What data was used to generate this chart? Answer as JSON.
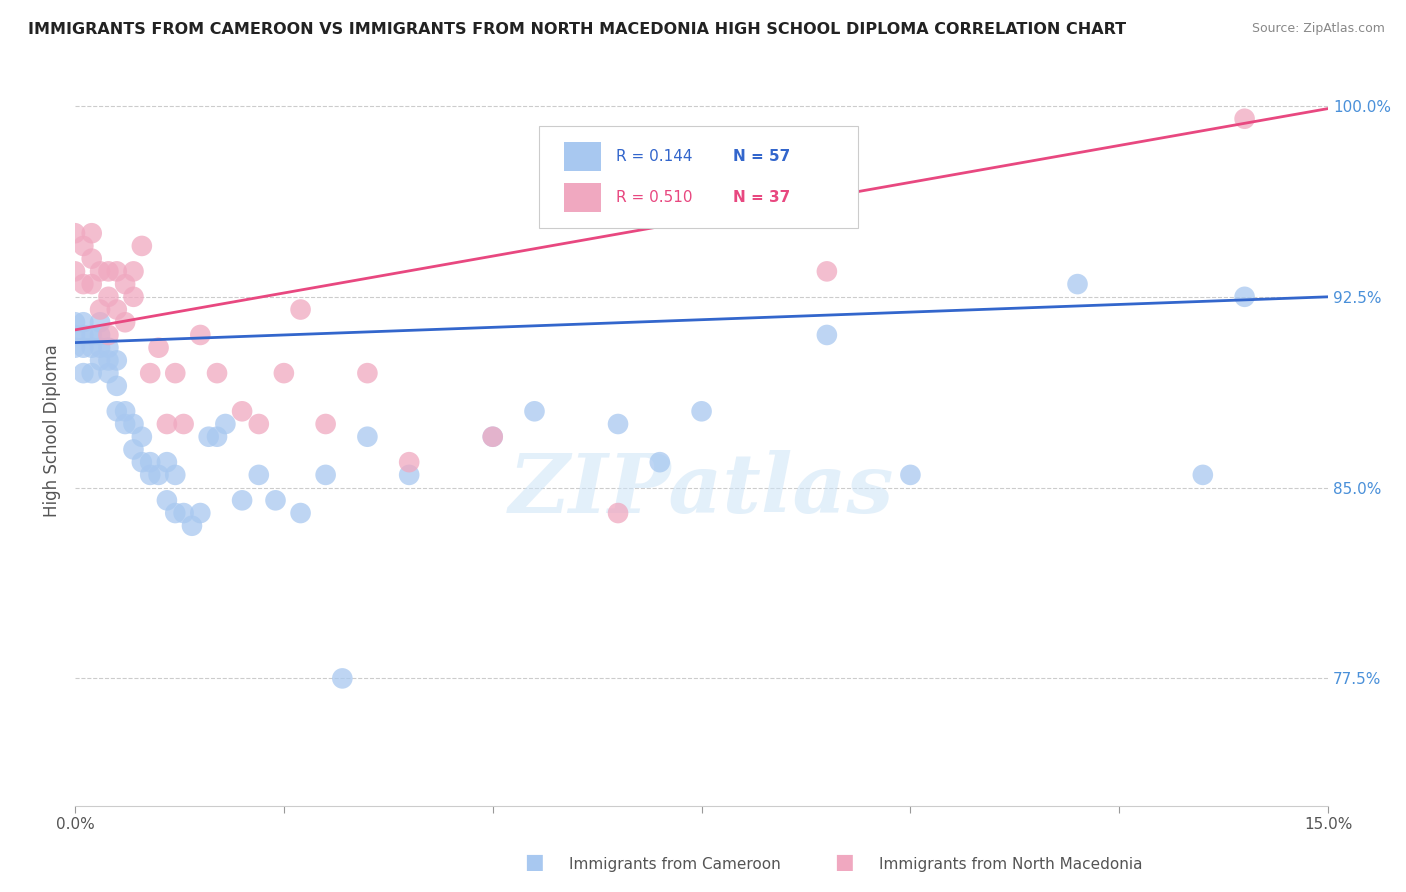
{
  "title": "IMMIGRANTS FROM CAMEROON VS IMMIGRANTS FROM NORTH MACEDONIA HIGH SCHOOL DIPLOMA CORRELATION CHART",
  "source": "Source: ZipAtlas.com",
  "ylabel": "High School Diploma",
  "blue_label": "Immigrants from Cameroon",
  "pink_label": "Immigrants from North Macedonia",
  "watermark": "ZIPatlas",
  "blue_color": "#a8c8f0",
  "pink_color": "#f0a8c0",
  "blue_line_color": "#3366cc",
  "pink_line_color": "#e84880",
  "xmin": 0.0,
  "xmax": 0.15,
  "ymin": 0.725,
  "ymax": 1.02,
  "ytick_vals": [
    0.775,
    0.85,
    0.925,
    1.0
  ],
  "ytick_labels": [
    "77.5%",
    "85.0%",
    "92.5%",
    "100.0%"
  ],
  "xtick_vals": [
    0.0,
    0.025,
    0.05,
    0.075,
    0.1,
    0.125,
    0.15
  ],
  "xtick_labels": [
    "0.0%",
    "",
    "",
    "",
    "",
    "",
    "15.0%"
  ],
  "blue_scatter_x": [
    0.0,
    0.0,
    0.0,
    0.001,
    0.001,
    0.001,
    0.001,
    0.002,
    0.002,
    0.002,
    0.003,
    0.003,
    0.003,
    0.003,
    0.004,
    0.004,
    0.004,
    0.005,
    0.005,
    0.005,
    0.006,
    0.006,
    0.007,
    0.007,
    0.008,
    0.008,
    0.009,
    0.009,
    0.01,
    0.011,
    0.011,
    0.012,
    0.012,
    0.013,
    0.014,
    0.015,
    0.016,
    0.017,
    0.018,
    0.02,
    0.022,
    0.024,
    0.027,
    0.03,
    0.032,
    0.035,
    0.04,
    0.05,
    0.055,
    0.065,
    0.07,
    0.075,
    0.09,
    0.1,
    0.12,
    0.135,
    0.14
  ],
  "blue_scatter_y": [
    0.905,
    0.91,
    0.915,
    0.895,
    0.905,
    0.91,
    0.915,
    0.895,
    0.905,
    0.91,
    0.9,
    0.905,
    0.91,
    0.915,
    0.895,
    0.9,
    0.905,
    0.88,
    0.89,
    0.9,
    0.875,
    0.88,
    0.865,
    0.875,
    0.86,
    0.87,
    0.855,
    0.86,
    0.855,
    0.845,
    0.86,
    0.84,
    0.855,
    0.84,
    0.835,
    0.84,
    0.87,
    0.87,
    0.875,
    0.845,
    0.855,
    0.845,
    0.84,
    0.855,
    0.775,
    0.87,
    0.855,
    0.87,
    0.88,
    0.875,
    0.86,
    0.88,
    0.91,
    0.855,
    0.93,
    0.855,
    0.925
  ],
  "pink_scatter_x": [
    0.0,
    0.0,
    0.001,
    0.001,
    0.002,
    0.002,
    0.002,
    0.003,
    0.003,
    0.004,
    0.004,
    0.004,
    0.005,
    0.005,
    0.006,
    0.006,
    0.007,
    0.007,
    0.008,
    0.009,
    0.01,
    0.011,
    0.012,
    0.013,
    0.015,
    0.017,
    0.02,
    0.022,
    0.025,
    0.027,
    0.03,
    0.035,
    0.04,
    0.05,
    0.065,
    0.09,
    0.14
  ],
  "pink_scatter_y": [
    0.935,
    0.95,
    0.93,
    0.945,
    0.93,
    0.94,
    0.95,
    0.92,
    0.935,
    0.91,
    0.925,
    0.935,
    0.92,
    0.935,
    0.915,
    0.93,
    0.925,
    0.935,
    0.945,
    0.895,
    0.905,
    0.875,
    0.895,
    0.875,
    0.91,
    0.895,
    0.88,
    0.875,
    0.895,
    0.92,
    0.875,
    0.895,
    0.86,
    0.87,
    0.84,
    0.935,
    0.995
  ],
  "blue_line_x0": 0.0,
  "blue_line_x1": 0.15,
  "blue_line_y0": 0.907,
  "blue_line_y1": 0.925,
  "pink_line_x0": 0.0,
  "pink_line_x1": 0.15,
  "pink_line_y0": 0.912,
  "pink_line_y1": 0.999
}
